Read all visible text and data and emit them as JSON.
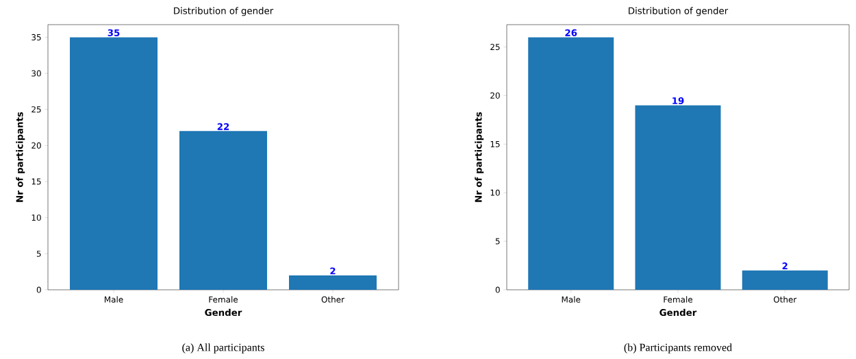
{
  "chart_data": [
    {
      "type": "bar",
      "title": "Distribution of gender",
      "xlabel": "Gender",
      "ylabel": "Nr of participants",
      "categories": [
        "Male",
        "Female",
        "Other"
      ],
      "values": [
        35,
        22,
        2
      ],
      "color": "#1f77b4",
      "ylim": [
        0,
        36.75
      ],
      "yticks": [
        0,
        5,
        10,
        15,
        20,
        25,
        30,
        35
      ],
      "data_labels": true,
      "annotations": [
        "(a)  All participants"
      ]
    },
    {
      "type": "bar",
      "title": "Distribution of gender",
      "xlabel": "Gender",
      "ylabel": "Nr of participants",
      "categories": [
        "Male",
        "Female",
        "Other"
      ],
      "values": [
        26,
        19,
        2
      ],
      "color": "#1f77b4",
      "ylim": [
        0,
        27.3
      ],
      "yticks": [
        0,
        5,
        10,
        15,
        20,
        25
      ],
      "data_labels": true,
      "annotations": [
        "(b) Participants removed"
      ]
    }
  ]
}
